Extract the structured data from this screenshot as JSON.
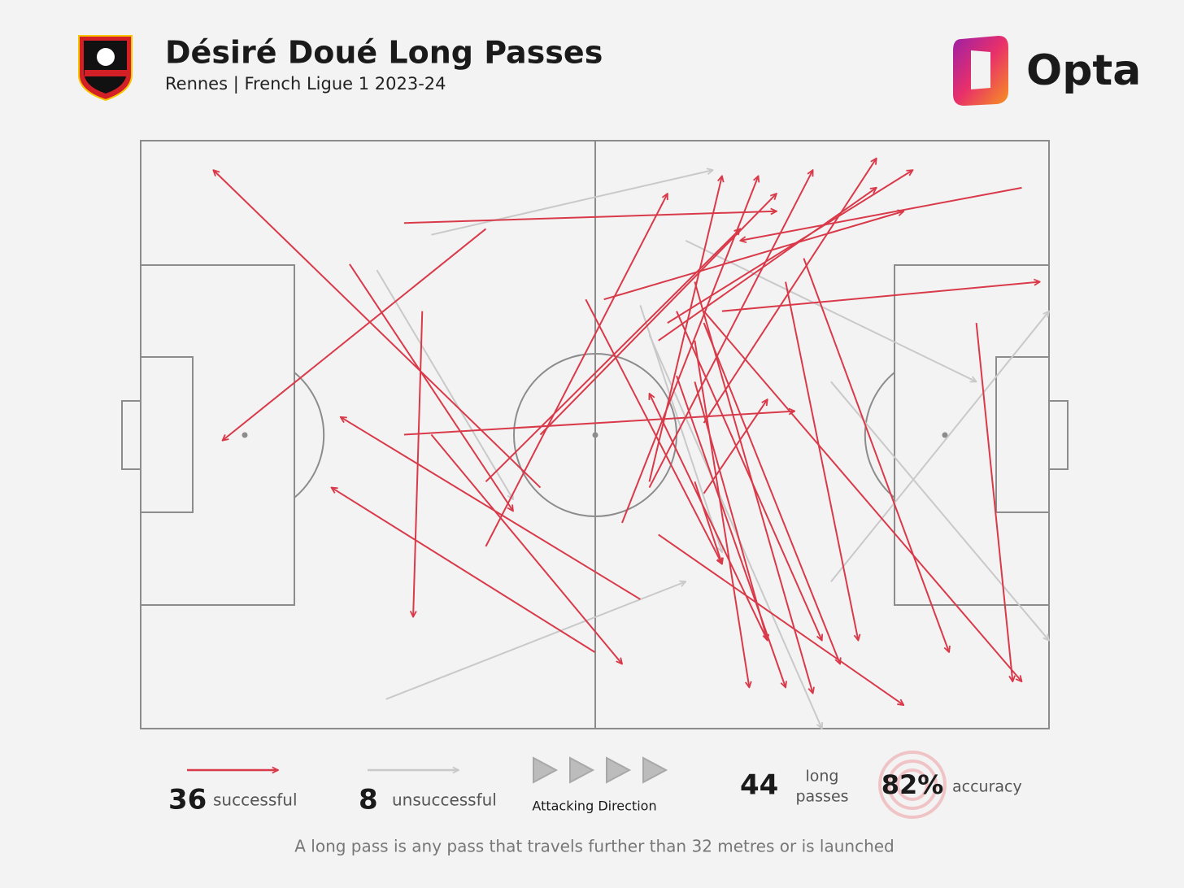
{
  "header": {
    "title": "Désiré Doué Long Passes",
    "subtitle": "Rennes | French Ligue 1 2023-24",
    "brand": "Opta"
  },
  "chart_data": {
    "type": "passmap",
    "xlim": [
      0,
      100
    ],
    "ylim": [
      0,
      100
    ],
    "series": [
      {
        "name": "successful",
        "color": "#d93a4a",
        "count": 36,
        "x_start": [
          44,
          38,
          23,
          31,
          55,
          50,
          29,
          29,
          32,
          38,
          38,
          44,
          49,
          51,
          57,
          58,
          64,
          97,
          69,
          56,
          53,
          56,
          62,
          62,
          62,
          61,
          59,
          61,
          73,
          71,
          92,
          57,
          61,
          61,
          59,
          62
        ],
        "y_start": [
          59,
          15,
          21,
          29,
          78,
          87,
          50,
          14,
          50,
          69,
          58,
          50,
          27,
          27,
          34,
          31,
          29,
          8,
          85,
          59,
          65,
          58,
          48,
          29,
          31,
          24,
          40,
          34,
          20,
          24,
          31,
          67,
          41,
          58,
          29,
          60
        ],
        "x_end": [
          8,
          9,
          41,
          30,
          22,
          21,
          72,
          70,
          53,
          58,
          66,
          70,
          64,
          84,
          81,
          85,
          99,
          66,
          56,
          74,
          68,
          64,
          81,
          97,
          77,
          74,
          71,
          67,
          89,
          79,
          96,
          84,
          69,
          64,
          75,
          69
        ],
        "y_end": [
          5,
          51,
          63,
          81,
          47,
          59,
          46,
          12,
          89,
          9,
          15,
          9,
          72,
          12,
          8,
          5,
          24,
          17,
          43,
          5,
          6,
          6,
          3,
          92,
          89,
          94,
          93,
          93,
          87,
          85,
          92,
          96,
          85,
          72,
          85,
          44
        ]
      },
      {
        "name": "unsuccessful",
        "color": "#c9c9c9",
        "count": 8,
        "x_start": [
          32,
          26,
          27,
          60,
          55,
          56,
          76,
          76
        ],
        "y_start": [
          16,
          22,
          95,
          17,
          28,
          33,
          75,
          41
        ],
        "x_end": [
          63,
          41,
          60,
          92,
          64,
          75,
          100,
          100
        ],
        "y_end": [
          5,
          61,
          75,
          41,
          70,
          100,
          29,
          85
        ]
      }
    ],
    "direction_label": "Attacking Direction",
    "total": 44,
    "total_label": [
      "long",
      "passes"
    ],
    "accuracy": {
      "value": 82,
      "label": "82%"
    },
    "accuracy_label": "accuracy",
    "footnote": "A long pass is any pass that travels further than 32 metres or is launched"
  }
}
